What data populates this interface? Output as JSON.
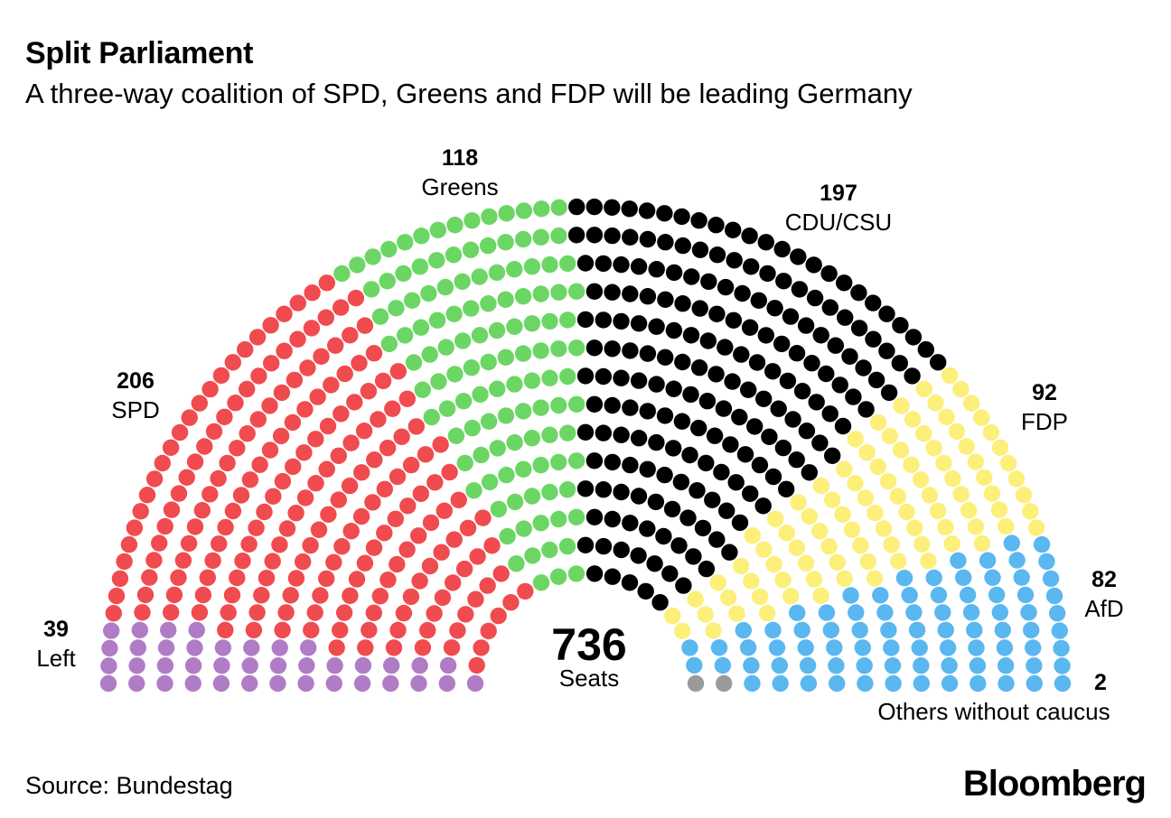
{
  "header": {
    "title": "Split Parliament",
    "subtitle": "A three-way coalition of SPD, Greens and FDP will be leading Germany"
  },
  "footer": {
    "source": "Source: Bundestag",
    "logo": "Bloomberg"
  },
  "chart_data": {
    "type": "parliament",
    "total": {
      "value": "736",
      "label": "Seats"
    },
    "rows": 14,
    "parties": [
      {
        "name": "Left",
        "seats": 39,
        "color": "#b07cc6"
      },
      {
        "name": "SPD",
        "seats": 206,
        "color": "#f04b4e"
      },
      {
        "name": "Greens",
        "seats": 118,
        "color": "#6cd665"
      },
      {
        "name": "CDU/CSU",
        "seats": 197,
        "color": "#000000"
      },
      {
        "name": "FDP",
        "seats": 92,
        "color": "#fcef7a"
      },
      {
        "name": "AfD",
        "seats": 82,
        "color": "#5ab7f0"
      },
      {
        "name": "Others without caucus",
        "seats": 2,
        "color": "#9a9a9a"
      }
    ]
  }
}
